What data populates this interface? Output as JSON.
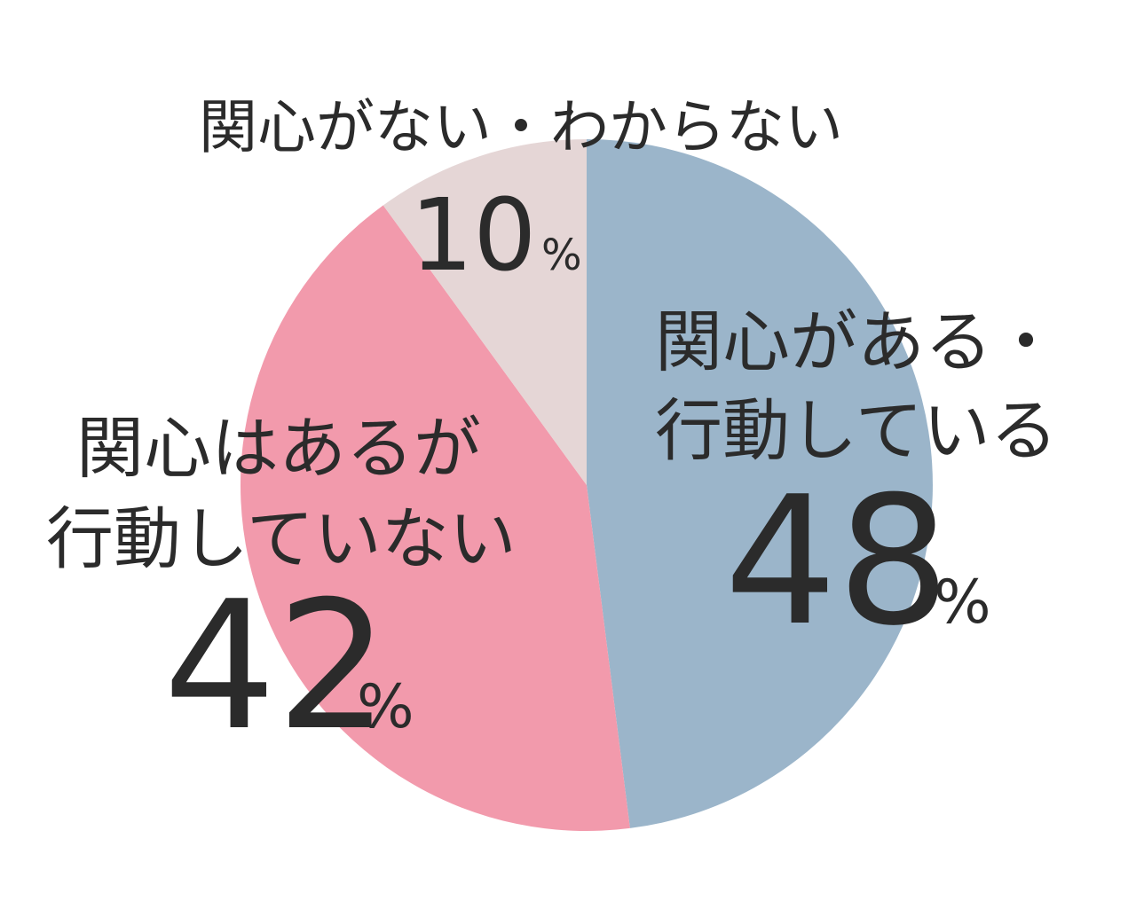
{
  "chart_data": {
    "type": "pie",
    "start": "top",
    "direction": "clockwise",
    "slices": [
      {
        "label_lines": [
          "関心がある・",
          "行動している"
        ],
        "value": 48,
        "color": "#9BB5CA"
      },
      {
        "label_lines": [
          "関心はあるが",
          "行動していない"
        ],
        "value": 42,
        "color": "#F29AAC"
      },
      {
        "label_lines": [
          "関心がない・わからない"
        ],
        "value": 10,
        "color": "#E5D6D6"
      }
    ],
    "unit": "%",
    "text_color": "#2b2b2b"
  }
}
